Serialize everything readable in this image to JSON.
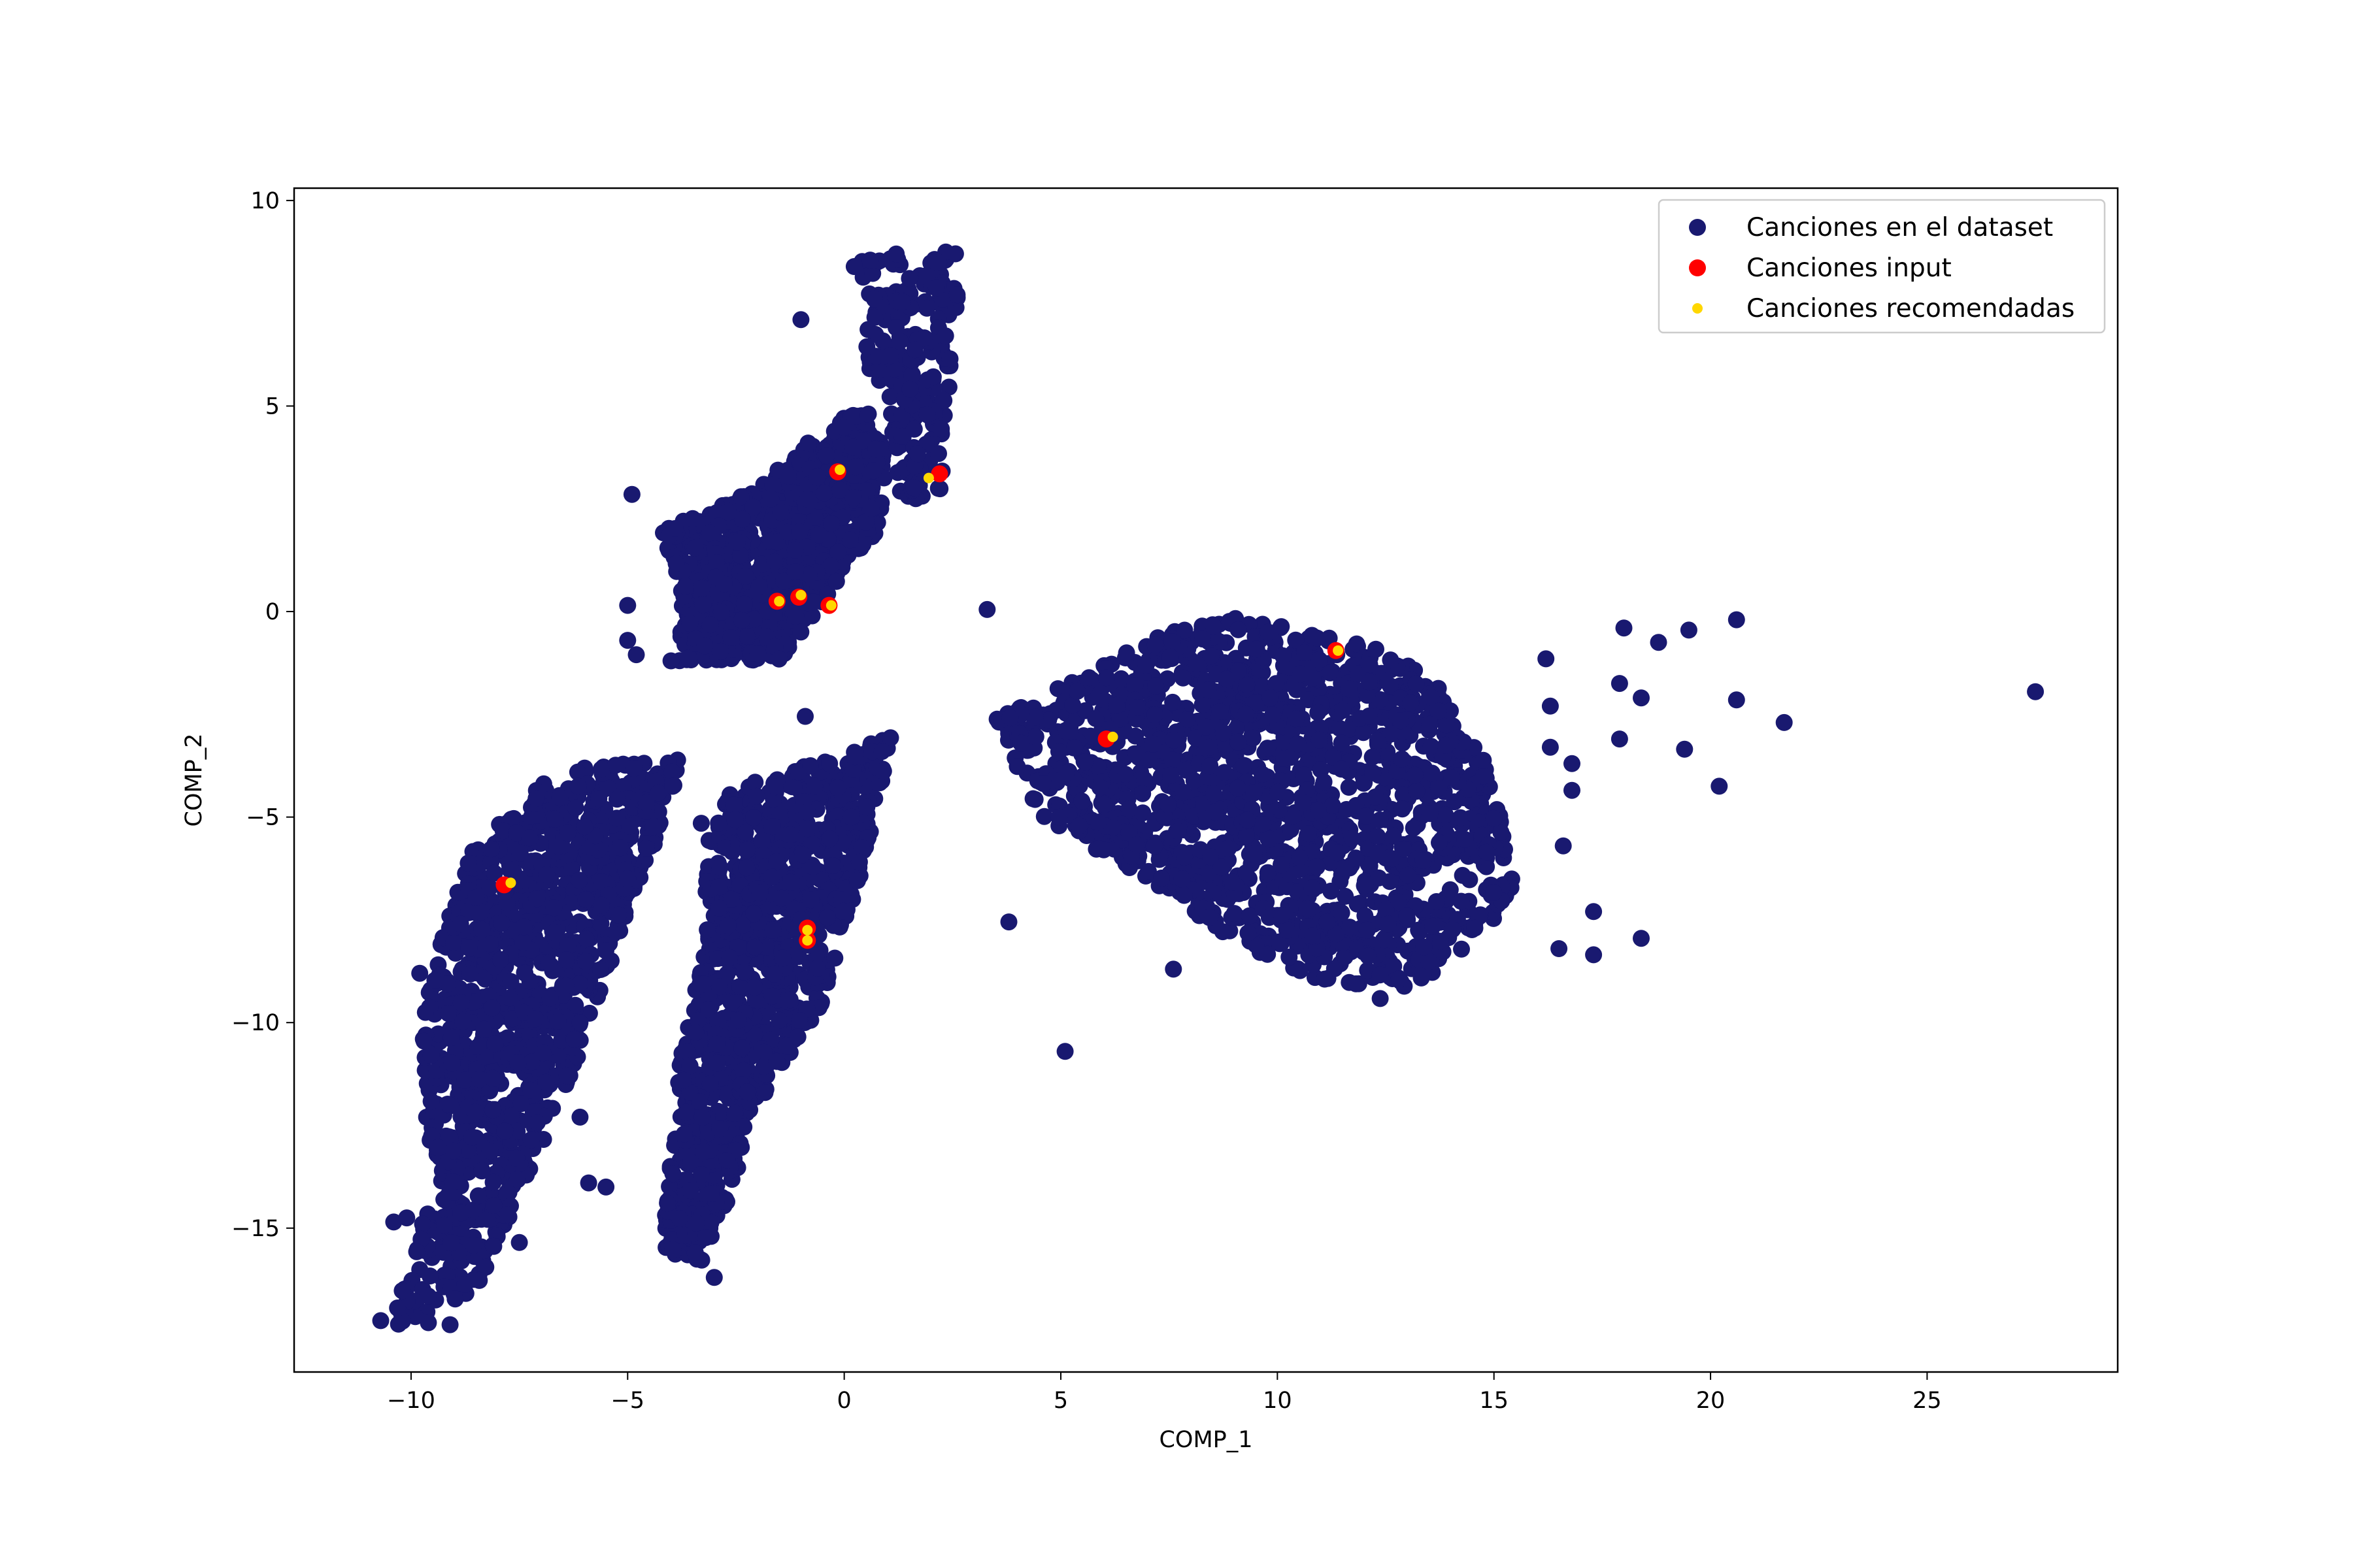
{
  "chart_data": {
    "type": "scatter",
    "title": "",
    "xlabel": "COMP_1",
    "ylabel": "COMP_2",
    "xlim": [
      -12.7,
      29.4
    ],
    "ylim": [
      -18.5,
      10.3
    ],
    "xticks": [
      -10,
      -5,
      0,
      5,
      10,
      15,
      20,
      25
    ],
    "xtick_labels": [
      "−10",
      "−5",
      "0",
      "5",
      "10",
      "15",
      "20",
      "25"
    ],
    "yticks": [
      -15,
      -10,
      -5,
      0,
      5,
      10
    ],
    "ytick_labels": [
      "−15",
      "−10",
      "−5",
      "0",
      "5",
      "10"
    ],
    "grid": false,
    "legend_position": "top-right",
    "series": [
      {
        "name": "Canciones en el dataset",
        "color": "#191970",
        "clusters": [
          {
            "shape": "polygon",
            "count": 900,
            "poly": [
              [
                -3.8,
                0.5
              ],
              [
                -4.2,
                2.0
              ],
              [
                -3.0,
                2.5
              ],
              [
                -2.0,
                3.0
              ],
              [
                -0.5,
                4.5
              ],
              [
                0.5,
                5.0
              ],
              [
                1.0,
                4.0
              ],
              [
                0.8,
                2.0
              ],
              [
                -1.5,
                -1.2
              ],
              [
                -3.8,
                -1.2
              ]
            ]
          },
          {
            "shape": "polygon",
            "count": 220,
            "poly": [
              [
                0.2,
                8.5
              ],
              [
                2.8,
                8.8
              ],
              [
                2.5,
                6.5
              ],
              [
                2.2,
                2.6
              ],
              [
                1.3,
                2.8
              ],
              [
                1.0,
                5.0
              ],
              [
                0.5,
                6.0
              ]
            ]
          },
          {
            "shape": "polygon",
            "count": 1100,
            "poly": [
              [
                -9.5,
                -8.5
              ],
              [
                -8.5,
                -5.5
              ],
              [
                -7.0,
                -4.2
              ],
              [
                -5.5,
                -3.6
              ],
              [
                -3.7,
                -3.6
              ],
              [
                -4.5,
                -6.0
              ],
              [
                -6.0,
                -10.5
              ],
              [
                -7.0,
                -13.0
              ],
              [
                -8.5,
                -16.5
              ],
              [
                -10.5,
                -17.5
              ],
              [
                -9.5,
                -14.0
              ],
              [
                -9.8,
                -10.5
              ]
            ]
          },
          {
            "shape": "polygon",
            "count": 1100,
            "poly": [
              [
                -3.2,
                -5.5
              ],
              [
                -2.5,
                -4.2
              ],
              [
                0.0,
                -3.5
              ],
              [
                1.1,
                -3.0
              ],
              [
                0.5,
                -6.0
              ],
              [
                -0.5,
                -9.5
              ],
              [
                -2.0,
                -12.0
              ],
              [
                -3.2,
                -16.0
              ],
              [
                -4.2,
                -15.5
              ],
              [
                -3.8,
                -11.0
              ],
              [
                -3.2,
                -8.0
              ]
            ]
          },
          {
            "shape": "polygon",
            "count": 1500,
            "poly": [
              [
                3.5,
                -2.6
              ],
              [
                6.5,
                -1.0
              ],
              [
                7.5,
                -0.5
              ],
              [
                9.0,
                -0.1
              ],
              [
                11.5,
                -0.5
              ],
              [
                13.5,
                -1.5
              ],
              [
                15.0,
                -4.0
              ],
              [
                15.5,
                -7.0
              ],
              [
                14.0,
                -8.5
              ],
              [
                12.5,
                -9.5
              ],
              [
                11.0,
                -9.0
              ],
              [
                9.0,
                -8.0
              ],
              [
                7.0,
                -6.5
              ],
              [
                4.5,
                -5.0
              ]
            ]
          }
        ],
        "outliers": [
          [
            27.5,
            -1.95
          ],
          [
            20.6,
            -0.2
          ],
          [
            21.7,
            -2.7
          ],
          [
            20.6,
            -2.15
          ],
          [
            20.2,
            -4.25
          ],
          [
            19.4,
            -3.35
          ],
          [
            19.5,
            -0.45
          ],
          [
            18.8,
            -0.75
          ],
          [
            18.4,
            -2.1
          ],
          [
            18.4,
            -7.95
          ],
          [
            17.9,
            -1.75
          ],
          [
            17.9,
            -3.1
          ],
          [
            18.0,
            -0.4
          ],
          [
            17.3,
            -7.3
          ],
          [
            17.3,
            -8.35
          ],
          [
            16.8,
            -3.7
          ],
          [
            16.8,
            -4.35
          ],
          [
            16.6,
            -5.7
          ],
          [
            16.5,
            -8.2
          ],
          [
            16.3,
            -3.3
          ],
          [
            16.3,
            -2.3
          ],
          [
            16.2,
            -1.15
          ],
          [
            3.3,
            0.05
          ],
          [
            3.8,
            -7.55
          ],
          [
            5.1,
            -10.7
          ],
          [
            7.6,
            -8.7
          ],
          [
            -0.9,
            -2.55
          ],
          [
            -4.8,
            -1.05
          ],
          [
            -4.0,
            -1.2
          ],
          [
            -5.0,
            0.15
          ],
          [
            -5.0,
            -0.7
          ],
          [
            -4.9,
            2.85
          ],
          [
            -3.3,
            -13.7
          ],
          [
            -5.5,
            -14.0
          ],
          [
            -5.9,
            -13.9
          ],
          [
            -6.1,
            -12.3
          ],
          [
            -6.1,
            -10.0
          ],
          [
            -5.0,
            -6.5
          ],
          [
            -3.3,
            -5.15
          ],
          [
            -7.5,
            -15.35
          ],
          [
            -3.0,
            -16.2
          ],
          [
            -10.7,
            -17.25
          ],
          [
            -10.4,
            -14.85
          ],
          [
            -10.1,
            -14.75
          ],
          [
            -9.1,
            -17.35
          ],
          [
            -9.6,
            -17.3
          ],
          [
            -9.7,
            -10.45
          ],
          [
            -9.8,
            -8.8
          ],
          [
            1.2,
            8.7
          ],
          [
            0.6,
            8.55
          ],
          [
            -1.0,
            7.1
          ],
          [
            0.7,
            7.6
          ],
          [
            0.2,
            4.0
          ]
        ]
      },
      {
        "name": "Canciones input",
        "color": "#ff0000",
        "points": [
          [
            -0.15,
            3.4
          ],
          [
            2.2,
            3.35
          ],
          [
            -1.55,
            0.25
          ],
          [
            -1.05,
            0.35
          ],
          [
            -0.35,
            0.15
          ],
          [
            6.05,
            -3.1
          ],
          [
            11.35,
            -0.95
          ],
          [
            -7.85,
            -6.65
          ],
          [
            -0.85,
            -7.7
          ],
          [
            -0.85,
            -8.0
          ]
        ]
      },
      {
        "name": "Canciones recomendadas",
        "color": "#ffd700",
        "points": [
          [
            -0.1,
            3.45
          ],
          [
            1.95,
            3.25
          ],
          [
            -1.5,
            0.25
          ],
          [
            -1.0,
            0.4
          ],
          [
            -0.3,
            0.15
          ],
          [
            6.2,
            -3.05
          ],
          [
            11.4,
            -0.95
          ],
          [
            -7.7,
            -6.6
          ],
          [
            -0.85,
            -7.75
          ],
          [
            -0.85,
            -8.0
          ]
        ]
      }
    ]
  }
}
